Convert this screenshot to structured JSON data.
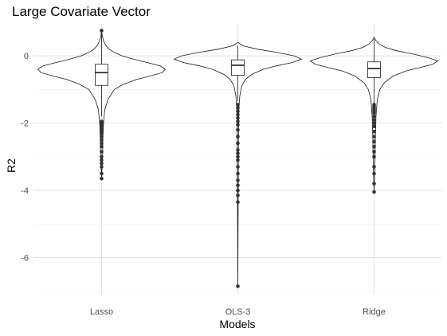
{
  "chart_data": {
    "type": "violin",
    "title": "Large Covariate Vector",
    "xlabel": "Models",
    "ylabel": "R2",
    "categories": [
      "Lasso",
      "OLS-3",
      "Ridge"
    ],
    "ylim": [
      -7.1,
      0.95
    ],
    "yticks": [
      0,
      -2,
      -4,
      -6
    ],
    "ytick_labels": [
      "0",
      "-2",
      "-4",
      "-6"
    ],
    "grid": true,
    "series": [
      {
        "category": "Lasso",
        "violin_profile": [
          [
            0.75,
            0.0
          ],
          [
            0.6,
            0.01
          ],
          [
            0.45,
            0.03
          ],
          [
            0.3,
            0.07
          ],
          [
            0.2,
            0.12
          ],
          [
            0.1,
            0.2
          ],
          [
            0.0,
            0.32
          ],
          [
            -0.1,
            0.5
          ],
          [
            -0.2,
            0.72
          ],
          [
            -0.3,
            0.92
          ],
          [
            -0.4,
            1.0
          ],
          [
            -0.5,
            0.95
          ],
          [
            -0.6,
            0.76
          ],
          [
            -0.7,
            0.55
          ],
          [
            -0.85,
            0.34
          ],
          [
            -1.0,
            0.2
          ],
          [
            -1.3,
            0.1
          ],
          [
            -1.6,
            0.05
          ],
          [
            -2.0,
            0.03
          ],
          [
            -2.5,
            0.02
          ],
          [
            -3.0,
            0.015
          ],
          [
            -3.65,
            0.0
          ]
        ],
        "box": {
          "q1": -0.88,
          "median": -0.5,
          "q3": -0.25,
          "whisker_low": -1.8,
          "whisker_high": 0.68
        },
        "outliers": [
          0.75,
          -1.95,
          -2.0,
          -2.05,
          -2.1,
          -2.15,
          -2.2,
          -2.25,
          -2.3,
          -2.4,
          -2.5,
          -2.6,
          -2.7,
          -2.85,
          -3.0,
          -3.1,
          -3.2,
          -3.3,
          -3.5,
          -3.65
        ]
      },
      {
        "category": "OLS-3",
        "violin_profile": [
          [
            0.4,
            0.0
          ],
          [
            0.3,
            0.08
          ],
          [
            0.2,
            0.3
          ],
          [
            0.1,
            0.62
          ],
          [
            0.0,
            0.88
          ],
          [
            -0.1,
            1.0
          ],
          [
            -0.2,
            0.85
          ],
          [
            -0.3,
            0.6
          ],
          [
            -0.4,
            0.4
          ],
          [
            -0.55,
            0.22
          ],
          [
            -0.7,
            0.12
          ],
          [
            -0.9,
            0.06
          ],
          [
            -1.2,
            0.03
          ],
          [
            -1.6,
            0.015
          ],
          [
            -2.5,
            0.01
          ],
          [
            -4.0,
            0.006
          ],
          [
            -6.85,
            0.0
          ]
        ],
        "box": {
          "q1": -0.58,
          "median": -0.28,
          "q3": -0.12,
          "whisker_low": -1.35,
          "whisker_high": 0.3
        },
        "outliers": [
          -1.45,
          -1.55,
          -1.65,
          -1.75,
          -1.85,
          -1.95,
          -2.05,
          -2.2,
          -2.4,
          -2.6,
          -2.8,
          -2.9,
          -3.0,
          -3.1,
          -3.3,
          -3.5,
          -3.7,
          -3.85,
          -4.0,
          -4.15,
          -4.35,
          -6.85
        ]
      },
      {
        "category": "Ridge",
        "violin_profile": [
          [
            0.55,
            0.0
          ],
          [
            0.45,
            0.03
          ],
          [
            0.35,
            0.08
          ],
          [
            0.25,
            0.18
          ],
          [
            0.15,
            0.36
          ],
          [
            0.05,
            0.62
          ],
          [
            -0.05,
            0.84
          ],
          [
            -0.15,
            1.0
          ],
          [
            -0.25,
            0.92
          ],
          [
            -0.35,
            0.72
          ],
          [
            -0.45,
            0.5
          ],
          [
            -0.6,
            0.3
          ],
          [
            -0.8,
            0.16
          ],
          [
            -1.0,
            0.09
          ],
          [
            -1.3,
            0.05
          ],
          [
            -1.8,
            0.03
          ],
          [
            -2.5,
            0.02
          ],
          [
            -3.5,
            0.01
          ],
          [
            -4.05,
            0.0
          ]
        ],
        "box": {
          "q1": -0.65,
          "median": -0.38,
          "q3": -0.18,
          "whisker_low": -1.4,
          "whisker_high": 0.5
        },
        "outliers": [
          -1.45,
          -1.5,
          -1.55,
          -1.6,
          -1.65,
          -1.7,
          -1.8,
          -1.9,
          -2.0,
          -2.1,
          -2.25,
          -2.4,
          -2.55,
          -2.7,
          -2.85,
          -3.0,
          -3.3,
          -3.5,
          -3.8,
          -4.05
        ]
      }
    ]
  }
}
